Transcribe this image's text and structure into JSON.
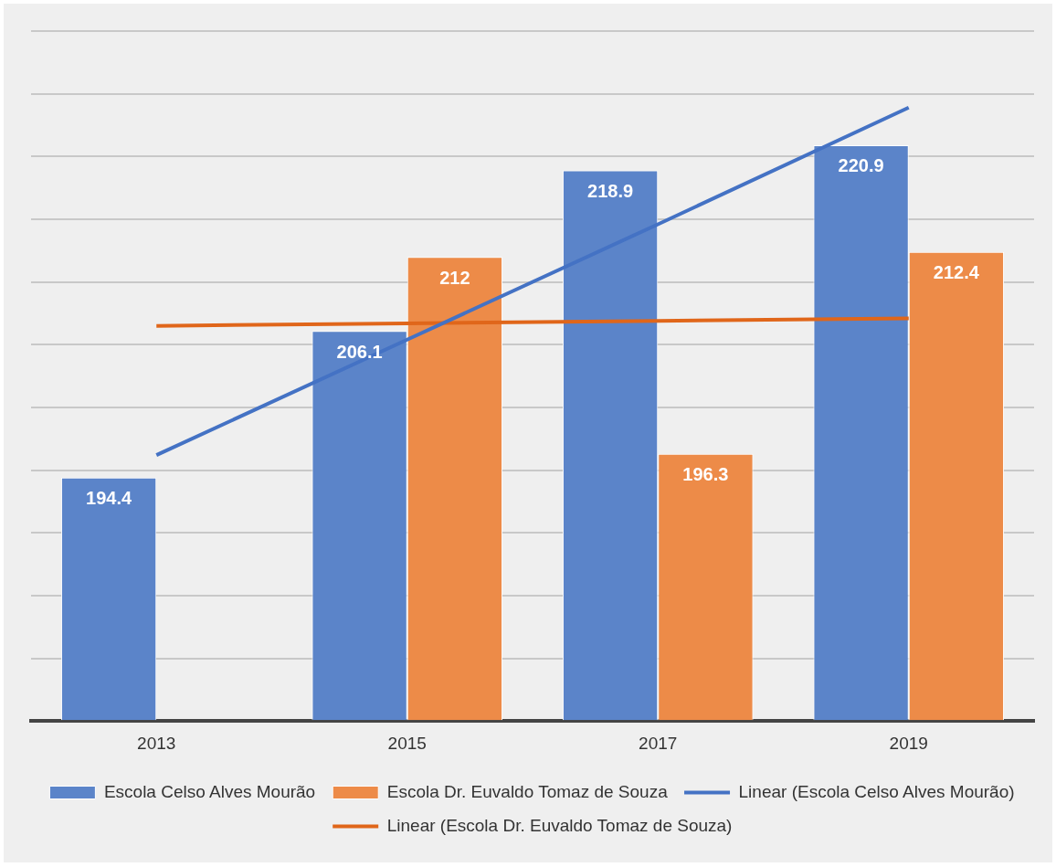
{
  "chart_data": {
    "type": "bar",
    "categories": [
      "2013",
      "2015",
      "2017",
      "2019"
    ],
    "series": [
      {
        "name": "Escola Celso Alves Mourão",
        "color": "#5b84c9",
        "values": [
          194.4,
          206.1,
          218.9,
          220.9
        ],
        "value_labels": [
          "194.4",
          "206.1",
          "218.9",
          "220.9"
        ]
      },
      {
        "name": "Escola Dr. Euvaldo Tomaz de Souza",
        "color": "#ed8b48",
        "values": [
          null,
          212,
          196.3,
          212.4
        ],
        "value_labels": [
          null,
          "212",
          "196.3",
          "212.4"
        ]
      },
      {
        "name": "Linear (Escola Celso Alves Mourão)",
        "type": "line",
        "color": "#4472c4",
        "values": [
          196.2,
          205.4,
          214.6,
          223.9
        ]
      },
      {
        "name": "Linear (Escola Dr. Euvaldo Tomaz de Souza)",
        "type": "line",
        "color": "#e0661a",
        "values": [
          206.5,
          206.7,
          206.9,
          207.1
        ]
      }
    ],
    "ylim": [
      175,
      230
    ],
    "yticks": [
      {
        "value": 175,
        "label": null
      },
      {
        "value": 180,
        "label": null
      },
      {
        "value": 185,
        "label": null
      },
      {
        "value": 190,
        "label": null
      },
      {
        "value": 195,
        "label": null
      },
      {
        "value": 200,
        "label": null
      },
      {
        "value": 205,
        "label": null
      },
      {
        "value": 210,
        "label": null
      },
      {
        "value": 215,
        "label": null
      },
      {
        "value": 220,
        "label": null
      },
      {
        "value": 225,
        "label": null
      },
      {
        "value": 230,
        "label": null
      }
    ],
    "tick_labels": "x",
    "grid": "y",
    "legend": "bottom",
    "line_style": "solid",
    "marker": "none"
  }
}
